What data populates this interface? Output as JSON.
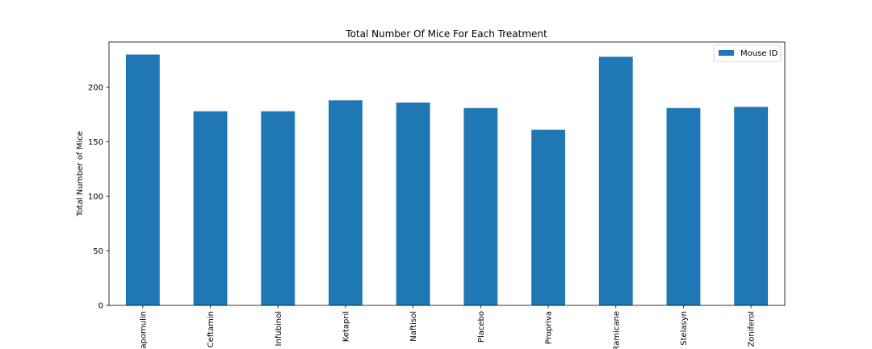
{
  "chart_data": {
    "type": "bar",
    "title": "Total Number Of Mice For Each Treatment",
    "xlabel": "",
    "ylabel": "Total Number of Mice",
    "categories": [
      "Capomulin",
      "Ceftamin",
      "Infubinol",
      "Ketapril",
      "Naftisol",
      "Placebo",
      "Propriva",
      "Ramicane",
      "Stelasyn",
      "Zoniferol"
    ],
    "series": [
      {
        "name": "Mouse ID",
        "values": [
          230,
          178,
          178,
          188,
          186,
          181,
          161,
          228,
          181,
          182
        ]
      }
    ],
    "yticks": [
      0,
      50,
      100,
      150,
      200
    ],
    "ylim": [
      0,
      241.5
    ],
    "legend": "top-right",
    "grid": false,
    "colors": {
      "bar": "#1f77b4",
      "axis": "#000000",
      "background": "#ffffff"
    }
  }
}
